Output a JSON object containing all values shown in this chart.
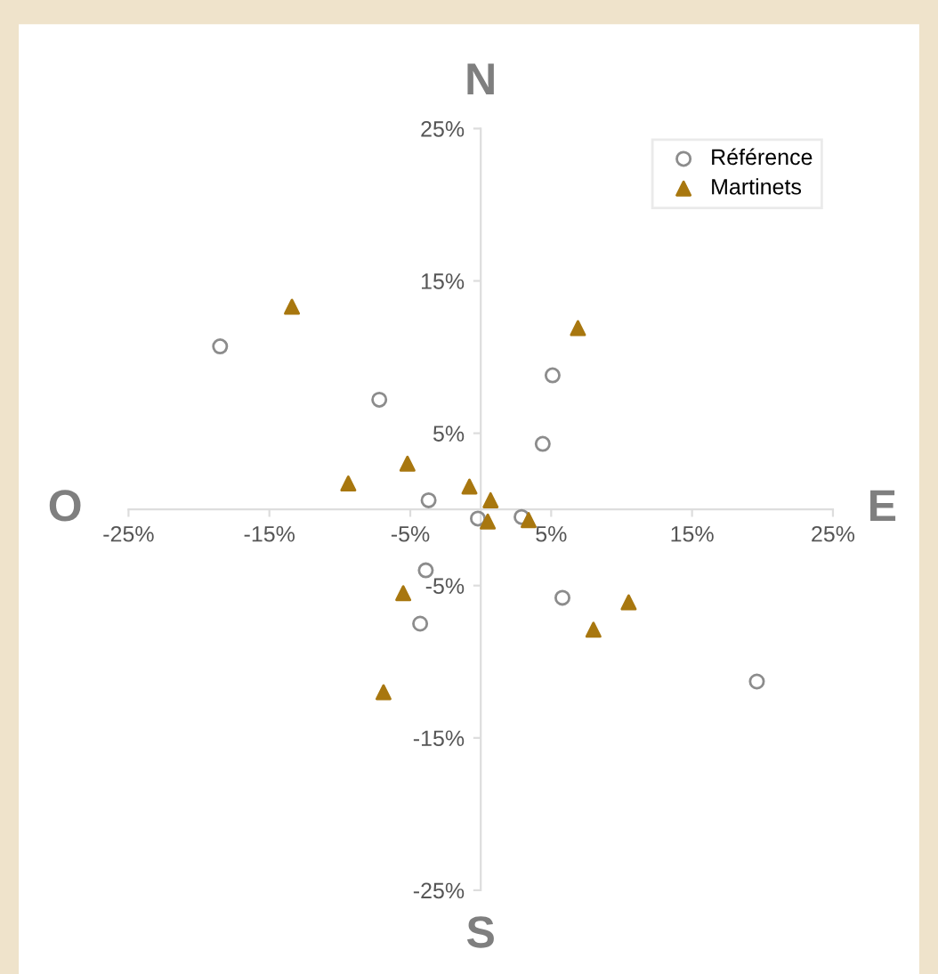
{
  "chart_data": {
    "type": "scatter",
    "annotations": [
      "N",
      "E",
      "S",
      "O"
    ],
    "series": [
      {
        "name": "Référence",
        "color": "#8c8c8c",
        "marker": "circle",
        "x": [
          -18.5,
          -7.2,
          5.1,
          4.4,
          -3.7,
          -0.2,
          2.9,
          -3.9,
          -4.3,
          5.8,
          19.6
        ],
        "values": [
          10.7,
          7.2,
          8.8,
          4.3,
          0.6,
          -0.6,
          -0.5,
          -4.0,
          -7.5,
          -5.8,
          -11.3
        ]
      },
      {
        "name": "Martinets",
        "color": "#a8770f",
        "marker": "triangle",
        "x": [
          -13.4,
          6.9,
          -5.2,
          -9.4,
          -0.8,
          0.7,
          0.5,
          3.4,
          -5.5,
          10.5,
          8.0,
          -6.9
        ],
        "values": [
          13.3,
          11.9,
          3.0,
          1.7,
          1.5,
          0.6,
          -0.8,
          -0.7,
          -5.5,
          -6.1,
          -7.9,
          -12.0
        ]
      }
    ],
    "xlim": [
      -25,
      25
    ],
    "ylim": [
      -25,
      25
    ],
    "xticks": [
      {
        "value": -25,
        "label": "-25%"
      },
      {
        "value": -15,
        "label": "-15%"
      },
      {
        "value": -5,
        "label": "-5%"
      },
      {
        "value": 5,
        "label": "5%"
      },
      {
        "value": 15,
        "label": "15%"
      },
      {
        "value": 25,
        "label": "25%"
      }
    ],
    "yticks": [
      {
        "value": -25,
        "label": "-25%"
      },
      {
        "value": -15,
        "label": "-15%"
      },
      {
        "value": -5,
        "label": "-5%"
      },
      {
        "value": 5,
        "label": "5%"
      },
      {
        "value": 15,
        "label": "15%"
      },
      {
        "value": 25,
        "label": "25%"
      }
    ],
    "legend": "top right"
  }
}
